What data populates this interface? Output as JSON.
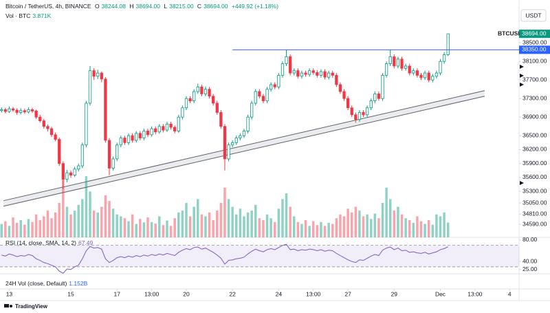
{
  "header": {
    "symbol": "Bitcoin / TetherUS, 4h, BINANCE",
    "ohlc": [
      {
        "label": "O",
        "value": "38244.08"
      },
      {
        "label": "H",
        "value": "38694.00"
      },
      {
        "label": "L",
        "value": "38215.00"
      },
      {
        "label": "C",
        "value": "38694.00"
      }
    ],
    "change": "+449.92 (+1.18%)",
    "vol_label": "Vol · BTC",
    "vol_value": "3.871K"
  },
  "currency": "USDT",
  "brand": "TradingView",
  "chart_data": {
    "type": "candlestick",
    "up_color": "#089981",
    "down_color": "#f23645",
    "open": [
      37040,
      37060,
      37020,
      37080,
      37050,
      37000,
      37040,
      37010,
      37060,
      37030,
      36900,
      36820,
      36700,
      36650,
      36520,
      36420,
      35900,
      35560,
      35700,
      35650,
      35780,
      35850,
      36300,
      37200,
      37900,
      37780,
      37850,
      37720,
      36400,
      35800,
      36000,
      36300,
      36450,
      36350,
      36500,
      36400,
      36550,
      36450,
      36600,
      36520,
      36650,
      36580,
      36700,
      36620,
      36750,
      36680,
      36600,
      36900,
      37100,
      37300,
      37250,
      37450,
      37550,
      37400,
      37500,
      37350,
      37200,
      37000,
      36700,
      36000,
      36300,
      36350,
      36450,
      36500,
      36600,
      36900,
      37200,
      37450,
      37350,
      37250,
      37500,
      37600,
      37550,
      37800,
      38050,
      38200,
      37850,
      37900,
      37780,
      37850,
      37820,
      37900,
      37860,
      37800,
      37880,
      37760,
      37850,
      37800,
      37600,
      37450,
      37300,
      37100,
      36950,
      36850,
      37000,
      36950,
      37100,
      37250,
      37400,
      37300,
      37800,
      38050,
      38200,
      38000,
      38150,
      37950,
      38000,
      37850,
      37900,
      37800,
      37750,
      37850,
      37700,
      37780,
      37850,
      38100,
      38244.08
    ],
    "high": [
      37110,
      37100,
      37130,
      37120,
      37090,
      37090,
      37080,
      37110,
      37100,
      37060,
      36950,
      36860,
      36740,
      36690,
      36570,
      36460,
      35950,
      35760,
      35750,
      35830,
      35900,
      36350,
      37250,
      38000,
      37950,
      37920,
      37880,
      37760,
      36450,
      36050,
      36350,
      36500,
      36500,
      36550,
      36550,
      36600,
      36600,
      36650,
      36650,
      36700,
      36700,
      36750,
      36750,
      36800,
      36800,
      36720,
      36950,
      37150,
      37350,
      37350,
      37500,
      37620,
      37600,
      37560,
      37550,
      37400,
      37250,
      37050,
      36750,
      36350,
      36400,
      36500,
      36550,
      36650,
      36950,
      37250,
      37500,
      37500,
      37400,
      37550,
      37650,
      37650,
      37850,
      38100,
      38350,
      38250,
      37950,
      37950,
      37900,
      37900,
      37950,
      37950,
      37910,
      37930,
      37930,
      37900,
      37900,
      37850,
      37650,
      37500,
      37350,
      37150,
      37000,
      37050,
      37050,
      37150,
      37300,
      37450,
      37450,
      37850,
      38100,
      38350,
      38250,
      38200,
      38200,
      38050,
      38050,
      37950,
      37950,
      37850,
      37900,
      37900,
      37830,
      37900,
      38150,
      38300,
      38694
    ],
    "low": [
      37000,
      36980,
      36990,
      37010,
      36950,
      36960,
      36970,
      36980,
      36990,
      36860,
      36780,
      36650,
      36590,
      36470,
      36380,
      35850,
      35350,
      35500,
      35590,
      35610,
      35730,
      35800,
      36250,
      37150,
      37700,
      37720,
      37650,
      36350,
      35650,
      35750,
      35950,
      36250,
      36300,
      36300,
      36350,
      36350,
      36400,
      36400,
      36470,
      36480,
      36530,
      36540,
      36570,
      36580,
      36630,
      36550,
      36560,
      36850,
      37050,
      37200,
      37200,
      37400,
      37350,
      37350,
      37300,
      37150,
      36950,
      36650,
      35750,
      35950,
      36250,
      36300,
      36400,
      36450,
      36550,
      36850,
      37150,
      37300,
      37200,
      37200,
      37450,
      37500,
      37500,
      37750,
      38000,
      37800,
      37800,
      37730,
      37730,
      37770,
      37770,
      37810,
      37750,
      37750,
      37710,
      37710,
      37750,
      37550,
      37400,
      37250,
      37050,
      36900,
      36780,
      36800,
      36900,
      36900,
      37050,
      37200,
      37250,
      37250,
      37750,
      38000,
      37950,
      37950,
      37900,
      37900,
      37800,
      37800,
      37750,
      37700,
      37700,
      37650,
      37650,
      37730,
      37800,
      38050,
      38215
    ],
    "close": [
      37060,
      37020,
      37080,
      37050,
      37000,
      37040,
      37010,
      37060,
      37030,
      36900,
      36820,
      36700,
      36650,
      36520,
      36420,
      35900,
      35560,
      35700,
      35650,
      35780,
      35850,
      36300,
      37200,
      37900,
      37780,
      37850,
      37720,
      36400,
      35800,
      36000,
      36300,
      36450,
      36350,
      36500,
      36400,
      36550,
      36450,
      36600,
      36520,
      36650,
      36580,
      36700,
      36620,
      36750,
      36680,
      36600,
      36900,
      37100,
      37300,
      37250,
      37450,
      37550,
      37400,
      37500,
      37350,
      37200,
      37000,
      36700,
      36000,
      36300,
      36350,
      36450,
      36500,
      36600,
      36900,
      37200,
      37450,
      37350,
      37250,
      37500,
      37600,
      37550,
      37800,
      38050,
      38200,
      37850,
      37900,
      37780,
      37850,
      37820,
      37900,
      37860,
      37800,
      37880,
      37760,
      37850,
      37800,
      37600,
      37450,
      37300,
      37100,
      36950,
      36850,
      37000,
      36950,
      37100,
      37250,
      37400,
      37300,
      37800,
      38050,
      38200,
      38000,
      38150,
      37950,
      38000,
      37850,
      37900,
      37800,
      37750,
      37850,
      37700,
      37780,
      37850,
      38100,
      38244.08,
      38694
    ],
    "volume": [
      3500,
      4200,
      3000,
      5200,
      3800,
      4500,
      3300,
      4800,
      4000,
      6000,
      4500,
      5500,
      7000,
      5000,
      6500,
      9000,
      15000,
      8000,
      6000,
      7000,
      8500,
      10000,
      16000,
      12000,
      7000,
      6500,
      8000,
      11000,
      9500,
      7500,
      6000,
      5500,
      5000,
      4200,
      6000,
      3500,
      4800,
      3900,
      5200,
      4000,
      3600,
      5500,
      3200,
      4400,
      3000,
      5000,
      6500,
      7000,
      9000,
      5500,
      8000,
      10000,
      6000,
      5500,
      6500,
      4500,
      7000,
      9000,
      13000,
      10000,
      8000,
      6000,
      7500,
      5500,
      6500,
      7000,
      8500,
      5000,
      4500,
      6000,
      5000,
      4000,
      7500,
      10000,
      11500,
      8000,
      5500,
      4000,
      3500,
      4500,
      3000,
      4200,
      3200,
      4000,
      3000,
      3800,
      3500,
      5000,
      6000,
      5500,
      7500,
      6500,
      8000,
      7000,
      5500,
      6000,
      4800,
      6200,
      5000,
      9000,
      13000,
      10000,
      7000,
      8000,
      6000,
      5000,
      4500,
      3800,
      5500,
      4200,
      3500,
      4500,
      3300,
      6000,
      5500,
      6500,
      3871
    ],
    "volume_ylim": [
      0,
      18000
    ],
    "ylim": [
      34310,
      39200
    ],
    "yticks": [
      {
        "value": 38500,
        "label": "38500.00"
      },
      {
        "value": 38100,
        "label": "38100.00"
      },
      {
        "value": 37700,
        "label": "37700.00"
      },
      {
        "value": 37300,
        "label": "37300.00"
      },
      {
        "value": 36900,
        "label": "36900.00"
      },
      {
        "value": 36500,
        "label": "36500.00"
      },
      {
        "value": 36200,
        "label": "36200.00"
      },
      {
        "value": 35900,
        "label": "35900.00"
      },
      {
        "value": 35600,
        "label": "35600.00"
      },
      {
        "value": 35300,
        "label": "35300.00"
      },
      {
        "value": 35050,
        "label": "35050.00"
      },
      {
        "value": 34810,
        "label": "34810.00"
      },
      {
        "value": 34590,
        "label": "34590.00"
      }
    ],
    "xlim": [
      -0.4,
      133.2
    ],
    "xticks": [
      {
        "value": 2,
        "label": "13"
      },
      {
        "value": 18,
        "label": "15"
      },
      {
        "value": 30,
        "label": "17"
      },
      {
        "value": 39,
        "label": "13:00"
      },
      {
        "value": 48,
        "label": "20"
      },
      {
        "value": 60,
        "label": "22"
      },
      {
        "value": 72,
        "label": "24"
      },
      {
        "value": 81,
        "label": "13:00"
      },
      {
        "value": 90,
        "label": "27"
      },
      {
        "value": 102,
        "label": "29"
      },
      {
        "value": 114,
        "label": "Dec"
      },
      {
        "value": 123,
        "label": "13:00"
      },
      {
        "value": 132,
        "label": "4"
      }
    ],
    "last_price": {
      "symbol": "BTCUSDT",
      "value": 38694,
      "label": "38694.00"
    },
    "hline": {
      "value": 38350,
      "label": "38350.00",
      "x_start": 60,
      "color": "#2962ff"
    },
    "channel": {
      "x": [
        0.5,
        125.5
      ],
      "lower": [
        34980,
        37350
      ],
      "upper": [
        35100,
        37470
      ]
    },
    "rsi": {
      "title": "RSI (14, close, SMA, 14, 2)",
      "color": "#7e57c2",
      "values": [
        52,
        50,
        54,
        52,
        49,
        51,
        50,
        53,
        51,
        45,
        42,
        38,
        36,
        33,
        30,
        22,
        18,
        26,
        25,
        30,
        33,
        45,
        60,
        68,
        65,
        66,
        63,
        45,
        38,
        42,
        47,
        49,
        47,
        50,
        48,
        51,
        49,
        52,
        50,
        53,
        51,
        54,
        52,
        55,
        53,
        51,
        57,
        61,
        64,
        62,
        66,
        67,
        63,
        65,
        61,
        57,
        52,
        46,
        35,
        42,
        43,
        45,
        46,
        48,
        54,
        59,
        63,
        60,
        58,
        62,
        64,
        62,
        66,
        70,
        72,
        62,
        63,
        60,
        62,
        61,
        63,
        62,
        60,
        62,
        59,
        61,
        60,
        55,
        51,
        47,
        43,
        40,
        38,
        43,
        42,
        46,
        50,
        53,
        51,
        61,
        65,
        67,
        62,
        65,
        60,
        61,
        57,
        58,
        56,
        55,
        57,
        54,
        56,
        58,
        62,
        64,
        67.49
      ],
      "ylim": [
        17,
        85
      ],
      "bands": [
        30,
        70
      ],
      "yticks": [
        {
          "value": 80,
          "label": "80.00"
        },
        {
          "value": 40,
          "label": "40.00"
        },
        {
          "value": 25,
          "label": "25.00"
        }
      ]
    },
    "vol24": {
      "title": "24H Vol (close, Default)",
      "value": "1.152B"
    }
  }
}
